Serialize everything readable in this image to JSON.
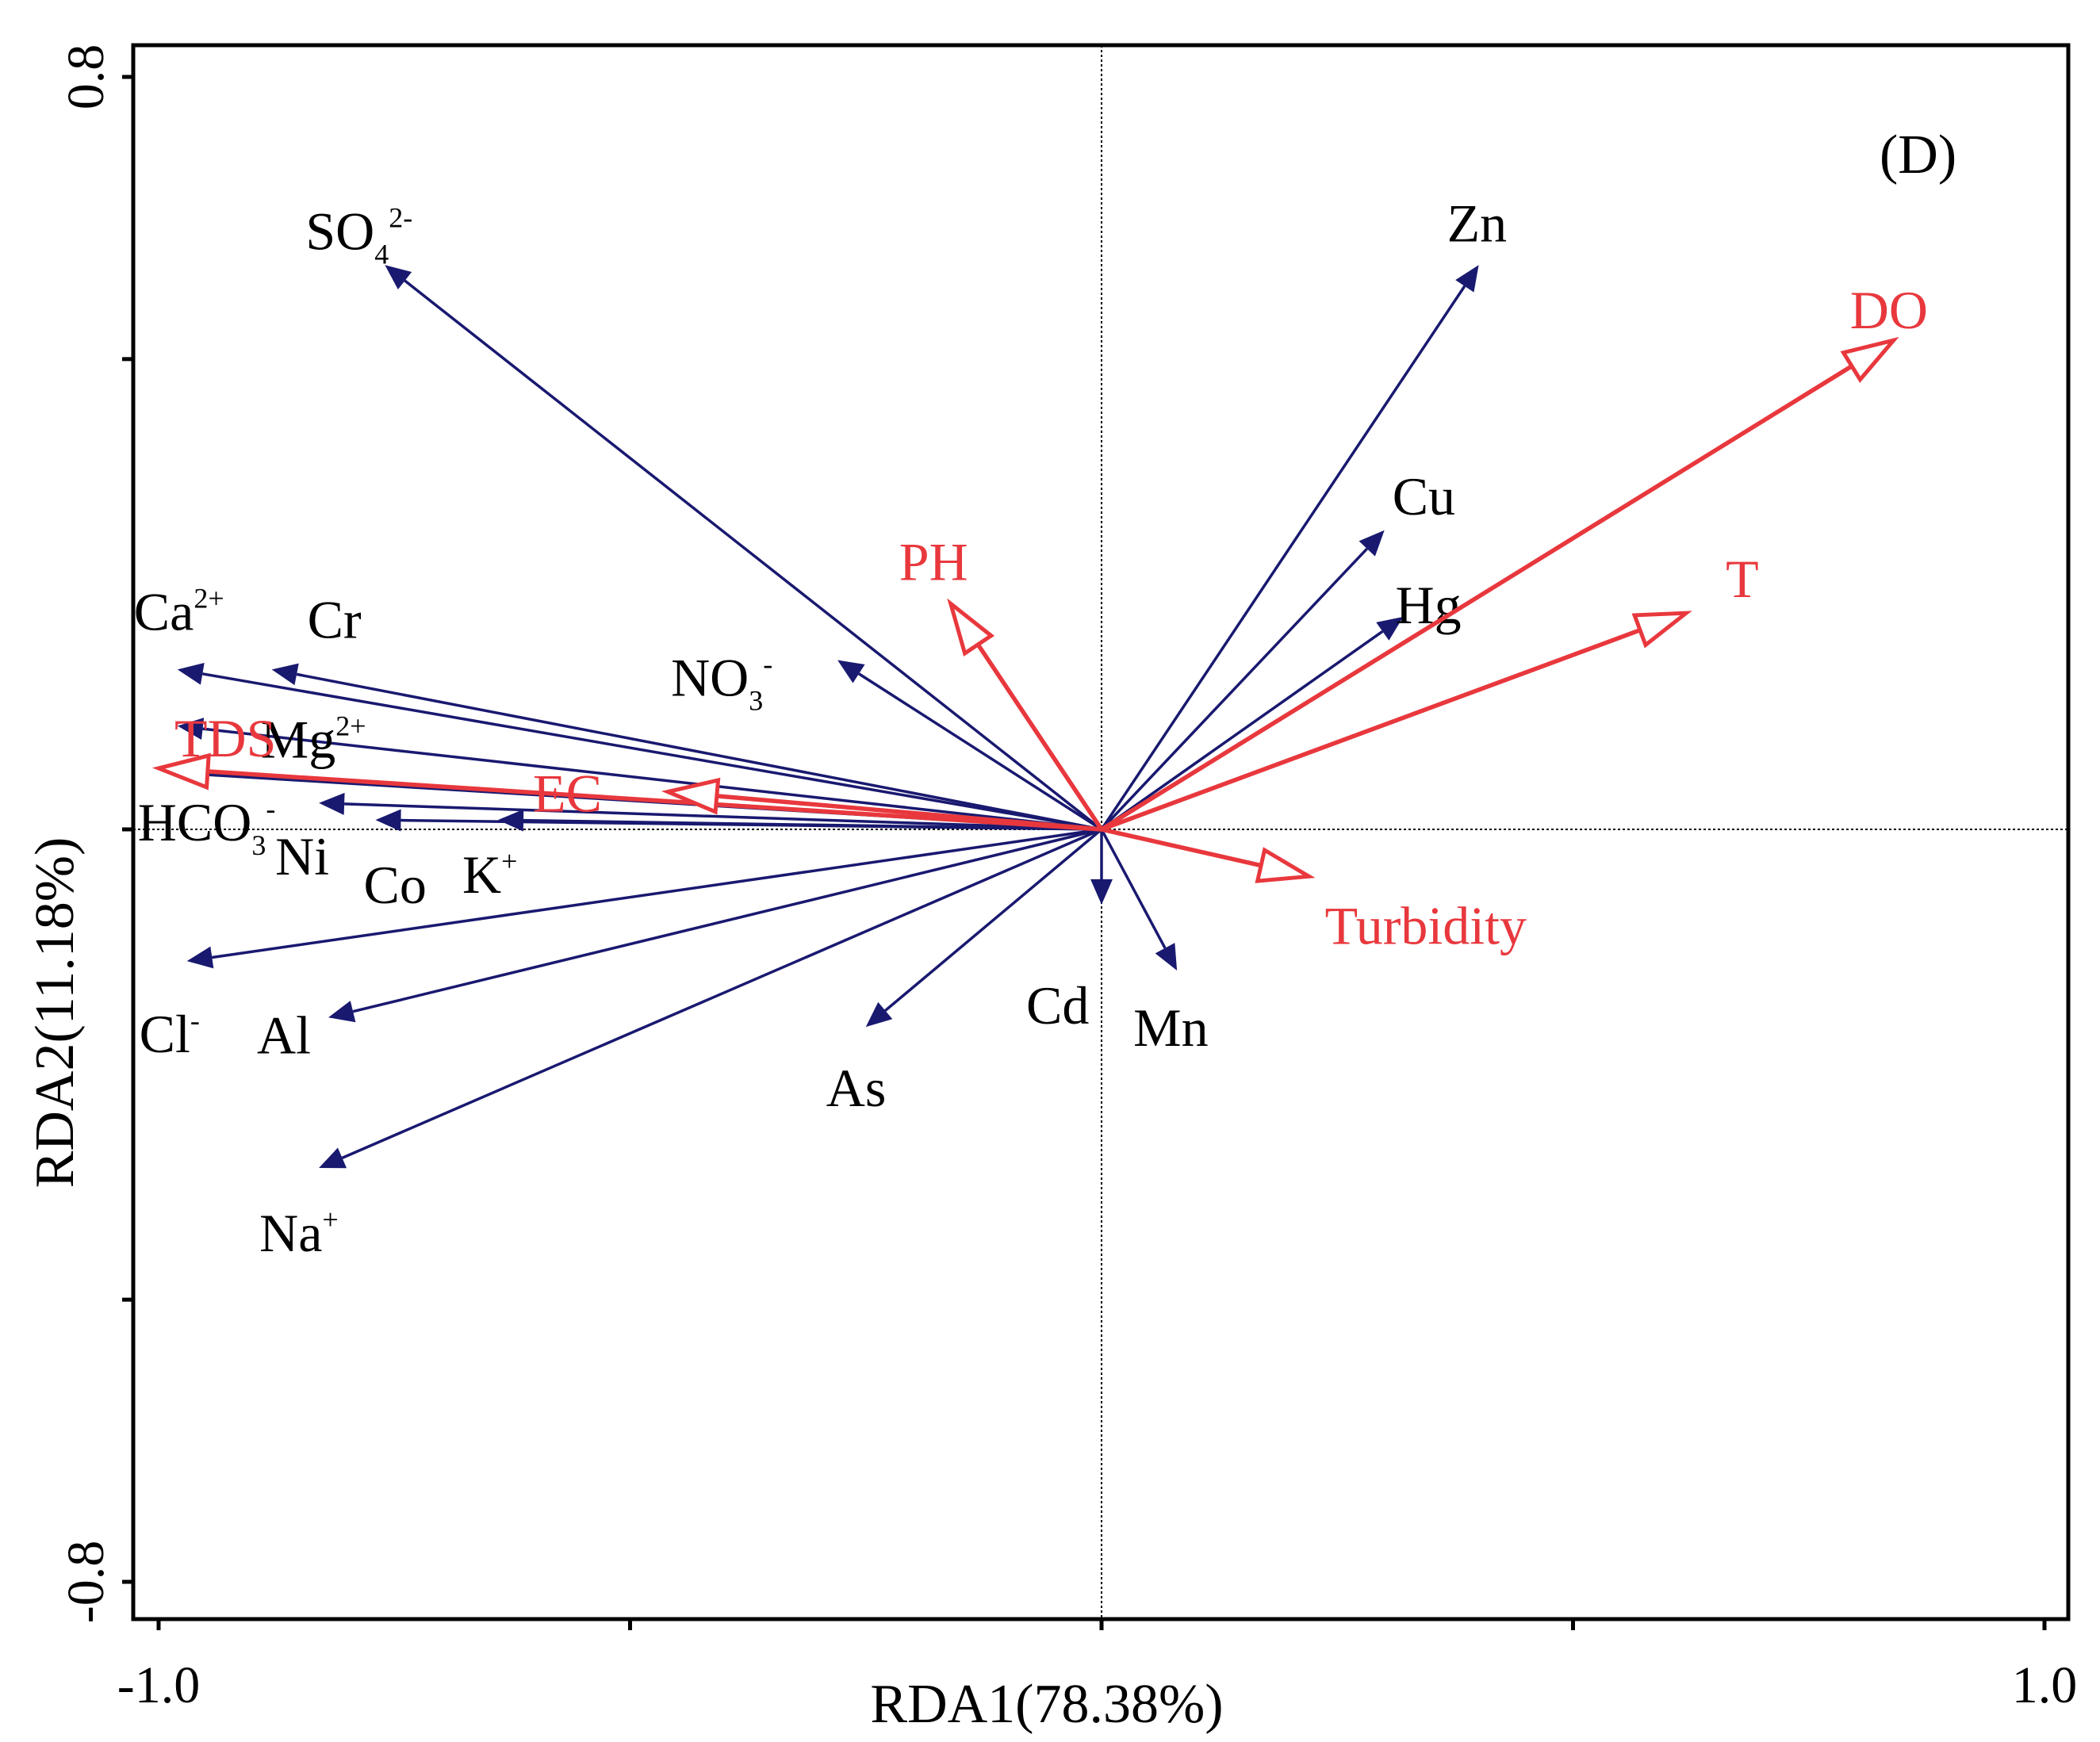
{
  "chart_data": {
    "type": "biplot",
    "panel_label": "(D)",
    "xlabel": "RDA1(78.38%)",
    "ylabel": "RDA2(11.18%)",
    "xlim": [
      -1.0,
      1.0
    ],
    "ylim": [
      -0.8,
      0.8
    ],
    "x_tick_labels": [
      {
        "value": -1.0,
        "label": "-1.0"
      },
      {
        "value": 1.0,
        "label": "1.0"
      }
    ],
    "y_tick_labels": [
      {
        "value": 0.8,
        "label": "0.8"
      },
      {
        "value": -0.8,
        "label": "-0.8"
      }
    ],
    "x_ticks": [
      -1.0,
      -0.5,
      0.0,
      0.5,
      1.0
    ],
    "y_ticks": [
      -0.8,
      -0.5,
      0.0,
      0.5,
      0.8
    ],
    "colors": {
      "response": "#191970",
      "explanatory": "#e8383d",
      "axis": "#000000"
    },
    "response_vectors": [
      {
        "id": "so4",
        "label": "SO",
        "sub": "4",
        "sup": "2-",
        "x": -0.76,
        "y": 0.6
      },
      {
        "id": "zn",
        "label": "Zn",
        "sub": "",
        "sup": "",
        "x": 0.4,
        "y": 0.6
      },
      {
        "id": "cu",
        "label": "Cu",
        "sub": "",
        "sup": "",
        "x": 0.3,
        "y": 0.318
      },
      {
        "id": "hg",
        "label": "Hg",
        "sub": "",
        "sup": "",
        "x": 0.32,
        "y": 0.226
      },
      {
        "id": "no3",
        "label": "NO",
        "sub": "3",
        "sup": "-",
        "x": -0.28,
        "y": 0.18
      },
      {
        "id": "ca",
        "label": "Ca",
        "sub": "",
        "sup": "2+",
        "x": -0.98,
        "y": 0.17
      },
      {
        "id": "cr",
        "label": "Cr",
        "sub": "",
        "sup": "",
        "x": -0.88,
        "y": 0.17
      },
      {
        "id": "mg",
        "label": "Mg",
        "sub": "",
        "sup": "2+",
        "x": -0.98,
        "y": 0.11
      },
      {
        "id": "hco3",
        "label": "HCO",
        "sub": "3",
        "sup": "-",
        "x": -0.98,
        "y": 0.06
      },
      {
        "id": "ni",
        "label": "Ni",
        "sub": "",
        "sup": "",
        "x": -0.83,
        "y": 0.028
      },
      {
        "id": "co",
        "label": "Co",
        "sub": "",
        "sup": "",
        "x": -0.77,
        "y": 0.01
      },
      {
        "id": "k",
        "label": "K",
        "sub": "",
        "sup": "+",
        "x": -0.64,
        "y": 0.01
      },
      {
        "id": "cl",
        "label": "Cl",
        "sub": "",
        "sup": "-",
        "x": -0.97,
        "y": -0.14
      },
      {
        "id": "al",
        "label": "Al",
        "sub": "",
        "sup": "",
        "x": -0.82,
        "y": -0.2
      },
      {
        "id": "na",
        "label": "Na",
        "sub": "",
        "sup": "+",
        "x": -0.83,
        "y": -0.36
      },
      {
        "id": "as",
        "label": "As",
        "sub": "",
        "sup": "",
        "x": -0.25,
        "y": -0.21
      },
      {
        "id": "cd",
        "label": "Cd",
        "sub": "",
        "sup": "",
        "x": 0.0,
        "y": -0.08
      },
      {
        "id": "mn",
        "label": "Mn",
        "sub": "",
        "sup": "",
        "x": 0.08,
        "y": -0.15
      }
    ],
    "explanatory_vectors": [
      {
        "id": "do",
        "label": "DO",
        "x": 0.84,
        "y": 0.52
      },
      {
        "id": "t",
        "label": "T",
        "x": 0.62,
        "y": 0.23
      },
      {
        "id": "ph",
        "label": "PH",
        "x": -0.16,
        "y": 0.24
      },
      {
        "id": "tds",
        "label": "TDS",
        "x": -1.0,
        "y": 0.065
      },
      {
        "id": "ec",
        "label": "EC",
        "x": -0.46,
        "y": 0.04
      },
      {
        "id": "turbidity",
        "label": "Turbidity",
        "x": 0.22,
        "y": -0.05
      }
    ]
  }
}
